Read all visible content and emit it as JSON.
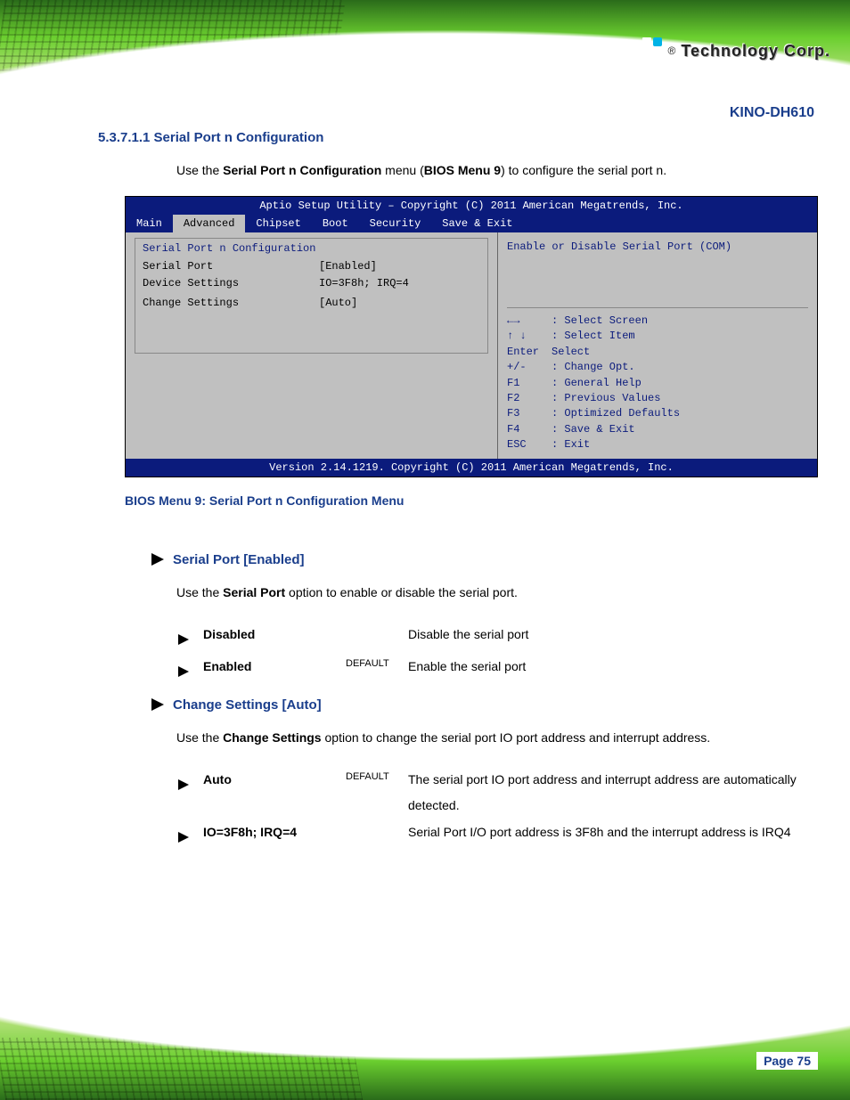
{
  "brand": {
    "registered": "®",
    "name": "Technology Corp."
  },
  "product_title": "KINO-DH610",
  "section_heading": "5.3.7.1.1 Serial Port n Configuration",
  "intro": {
    "prefix": "Use the ",
    "bold": "Serial Port n Configuration",
    "mid": " menu (",
    "ref": "BIOS Menu 9",
    "suffix": ") to configure the serial port n."
  },
  "bios": {
    "title": "Aptio Setup Utility – Copyright (C) 2011 American Megatrends, Inc.",
    "tabs": [
      "Main",
      "Advanced",
      "Chipset",
      "Boot",
      "Security",
      "Save & Exit"
    ],
    "active_tab": 1,
    "left_title": "Serial Port n Configuration",
    "rows": [
      {
        "label": "Serial Port",
        "value": "[Enabled]"
      },
      {
        "label": "Device Settings",
        "value": "IO=3F8h; IRQ=4"
      },
      {
        "label": "",
        "value": ""
      },
      {
        "label": "Change Settings",
        "value": "[Auto]"
      }
    ],
    "help": "Enable or Disable Serial Port (COM)",
    "keys": [
      {
        "k": "←→",
        "d": ": Select Screen"
      },
      {
        "k": "↑ ↓",
        "d": ": Select Item"
      },
      {
        "k": "Enter",
        "d": "Select"
      },
      {
        "k": "+/-",
        "d": ": Change Opt."
      },
      {
        "k": "F1",
        "d": ": General Help"
      },
      {
        "k": "F2",
        "d": ": Previous Values"
      },
      {
        "k": "F3",
        "d": ": Optimized Defaults"
      },
      {
        "k": "F4",
        "d": ": Save & Exit"
      },
      {
        "k": "ESC",
        "d": ": Exit"
      }
    ],
    "footer": "Version 2.14.1219. Copyright (C) 2011 American Megatrends, Inc."
  },
  "fig_caption": "BIOS Menu 9: Serial Port n Configuration Menu",
  "opt1": {
    "heading": "Serial Port [Enabled]",
    "intro_prefix": "Use the ",
    "intro_bold": "Serial Port",
    "intro_suffix": " option to enable or disable the serial port.",
    "rows": [
      {
        "name": "Disabled",
        "def": "",
        "desc": "Disable the serial port"
      },
      {
        "name": "Enabled",
        "def": "DEFAULT",
        "desc": "Enable the serial port"
      }
    ]
  },
  "opt2": {
    "heading": "Change Settings [Auto]",
    "intro_prefix": "Use the ",
    "intro_bold": "Change Settings",
    "intro_suffix": " option to change the serial port IO port address and interrupt address.",
    "rows": [
      {
        "name": "Auto",
        "def": "DEFAULT",
        "desc": "The serial port IO port address and interrupt address are automatically detected."
      },
      {
        "name": "IO=3F8h; IRQ=4",
        "def": "",
        "desc": "Serial Port I/O port address is 3F8h and the interrupt address is IRQ4"
      }
    ]
  },
  "page_number": "Page 75"
}
